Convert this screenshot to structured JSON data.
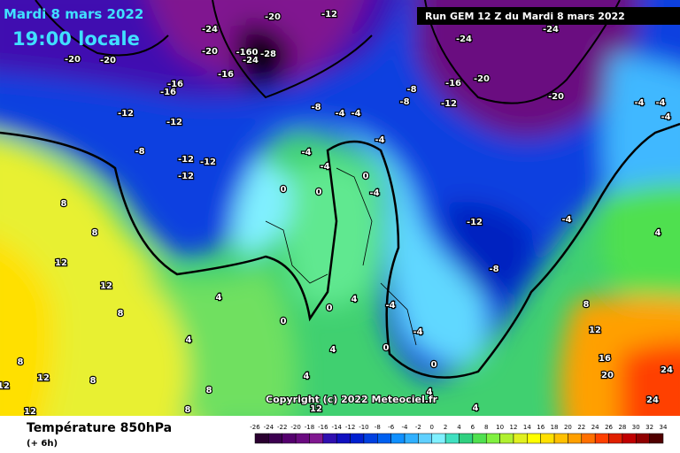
{
  "header": {
    "date": "Mardi 8 mars 2022",
    "time": "19:00 locale",
    "run": "Run GEM 12 Z du Mardi 8 mars 2022"
  },
  "copyright": "Copyright (c) 2022 Meteociel.fr",
  "footer": {
    "title": "Température 850hPa",
    "step": "(+ 6h)"
  },
  "legend": {
    "ticks": [
      -26,
      -24,
      -22,
      -20,
      -18,
      -16,
      -14,
      -12,
      -10,
      -8,
      -6,
      -4,
      -2,
      0,
      2,
      4,
      6,
      8,
      10,
      12,
      14,
      16,
      18,
      20,
      22,
      24,
      26,
      28,
      30,
      32,
      34
    ],
    "colors": [
      "#2a0030",
      "#3c0050",
      "#55006e",
      "#6a0a80",
      "#801890",
      "#3010b0",
      "#1010c0",
      "#0020d0",
      "#0040e0",
      "#0060f0",
      "#1090ff",
      "#30b0ff",
      "#60d0ff",
      "#80f0ff",
      "#40e0c0",
      "#30d080",
      "#50e050",
      "#80f040",
      "#b0f030",
      "#e0f020",
      "#ffff00",
      "#ffe000",
      "#ffc000",
      "#ffa000",
      "#ff7000",
      "#ff4000",
      "#e02000",
      "#c00000",
      "#900000",
      "#500000"
    ]
  },
  "contour_labels": [
    "-20",
    "-12",
    "-24",
    "-24",
    "-24",
    "-20",
    "-20",
    "-20",
    "-160",
    "-28",
    "-24",
    "-16",
    "-16",
    "-16",
    "-20",
    "-16",
    "-8",
    "-20",
    "-12",
    "-12",
    "-8",
    "-4",
    "-4",
    "-8",
    "-12",
    "-4",
    "-4",
    "-4",
    "-8",
    "-12",
    "-12",
    "-12",
    "-4",
    "-4",
    "-4",
    "0",
    "-4",
    "0",
    "0",
    "-12",
    "-4",
    "-8",
    "4",
    "8",
    "8",
    "12",
    "12",
    "8",
    "4",
    "4",
    "0",
    "4",
    "-4",
    "0",
    "-4",
    "4",
    "0",
    "0",
    "8",
    "12",
    "16",
    "20",
    "24",
    "24",
    "12",
    "12",
    "12",
    "8",
    "8",
    "8",
    "4",
    "12",
    "4",
    "4",
    "8"
  ]
}
